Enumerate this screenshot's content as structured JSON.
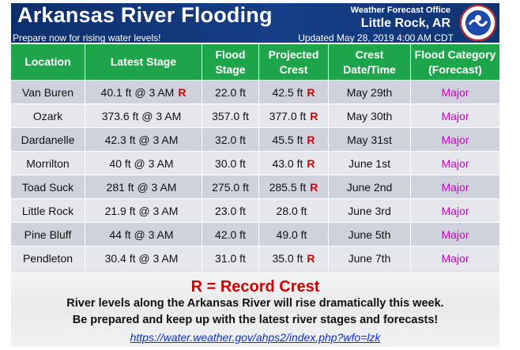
{
  "header": {
    "title": "Arkansas River Flooding",
    "subtitle": "Prepare now for rising water levels!",
    "office": "Weather Forecast Office",
    "city": "Little Rock, AR",
    "updated": "Updated May 28, 2019 4:00 AM CDT"
  },
  "table": {
    "columns": [
      "Location",
      "Latest  Stage",
      "Flood\nStage",
      "Projected\nCrest",
      "Crest\nDate/Time",
      "Flood Category\n(Forecast)"
    ],
    "rows": [
      {
        "location": "Van Buren",
        "latest": "40.1 ft @ 3 AM",
        "latest_record": "R",
        "flood": "22.0 ft",
        "crest": "42.5 ft",
        "crest_record": "R",
        "date": "May 29th",
        "category": "Major"
      },
      {
        "location": "Ozark",
        "latest": "373.6 ft @ 3 AM",
        "latest_record": "",
        "flood": "357.0 ft",
        "crest": "377.0 ft",
        "crest_record": "R",
        "date": "May 30th",
        "category": "Major"
      },
      {
        "location": "Dardanelle",
        "latest": "42.3 ft @ 3 AM",
        "latest_record": "",
        "flood": "32.0 ft",
        "crest": "45.5 ft",
        "crest_record": "R",
        "date": "May 31st",
        "category": "Major"
      },
      {
        "location": "Morrilton",
        "latest": "40 ft @ 3 AM",
        "latest_record": "",
        "flood": "30.0 ft",
        "crest": "43.0 ft",
        "crest_record": "R",
        "date": "June 1st",
        "category": "Major"
      },
      {
        "location": "Toad Suck",
        "latest": "281 ft @ 3 AM",
        "latest_record": "",
        "flood": "275.0 ft",
        "crest": "285.5 ft",
        "crest_record": "R",
        "date": "June 2nd",
        "category": "Major"
      },
      {
        "location": "Little Rock",
        "latest": "21.9 ft @ 3 AM",
        "latest_record": "",
        "flood": "23.0 ft",
        "crest": "28.0 ft",
        "crest_record": "",
        "date": "June 3rd",
        "category": "Major"
      },
      {
        "location": "Pine Bluff",
        "latest": "44 ft @ 3 AM",
        "latest_record": "",
        "flood": "42.0 ft",
        "crest": "49.0 ft",
        "crest_record": "",
        "date": "June 5th",
        "category": "Major"
      },
      {
        "location": "Pendleton",
        "latest": "30.4 ft @ 3 AM",
        "latest_record": "",
        "flood": "31.0 ft",
        "crest": "35.0 ft",
        "crest_record": "R",
        "date": "June 7th",
        "category": "Major"
      }
    ]
  },
  "footer": {
    "record_note": "R = Record Crest",
    "line1": "River levels along the Arkansas River will rise dramatically this week.",
    "line2": "Be prepared and keep up with the latest river stages and forecasts!",
    "link": "https://water.weather.gov/ahps2/index.php?wfo=lzk"
  },
  "colors": {
    "header_blue": "#163e86",
    "table_header_green": "#1ea44b",
    "record_red": "#d40000",
    "major_magenta": "#d000c8",
    "link_blue": "#0b2fd0"
  },
  "icons": {
    "logo": "noaa-nws-logo-icon"
  }
}
